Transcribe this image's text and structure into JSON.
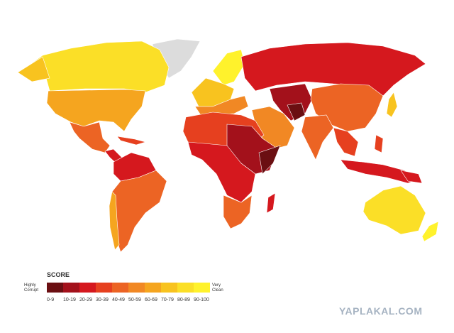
{
  "legend": {
    "title": "SCORE",
    "low_label": "Highly Corrupt",
    "high_label": "Very Clean",
    "items": [
      {
        "label": "0-9",
        "color": "#6b0f12"
      },
      {
        "label": "10-19",
        "color": "#a3111b"
      },
      {
        "label": "20-29",
        "color": "#d5181e"
      },
      {
        "label": "30-39",
        "color": "#e6401f"
      },
      {
        "label": "40-49",
        "color": "#ec6424"
      },
      {
        "label": "50-59",
        "color": "#f18824"
      },
      {
        "label": "60-69",
        "color": "#f5a51f"
      },
      {
        "label": "70-79",
        "color": "#f8c31f"
      },
      {
        "label": "80-89",
        "color": "#fbdf27"
      },
      {
        "label": "90-100",
        "color": "#fff22c"
      }
    ]
  },
  "watermark": "YAPLAKAL.COM"
}
